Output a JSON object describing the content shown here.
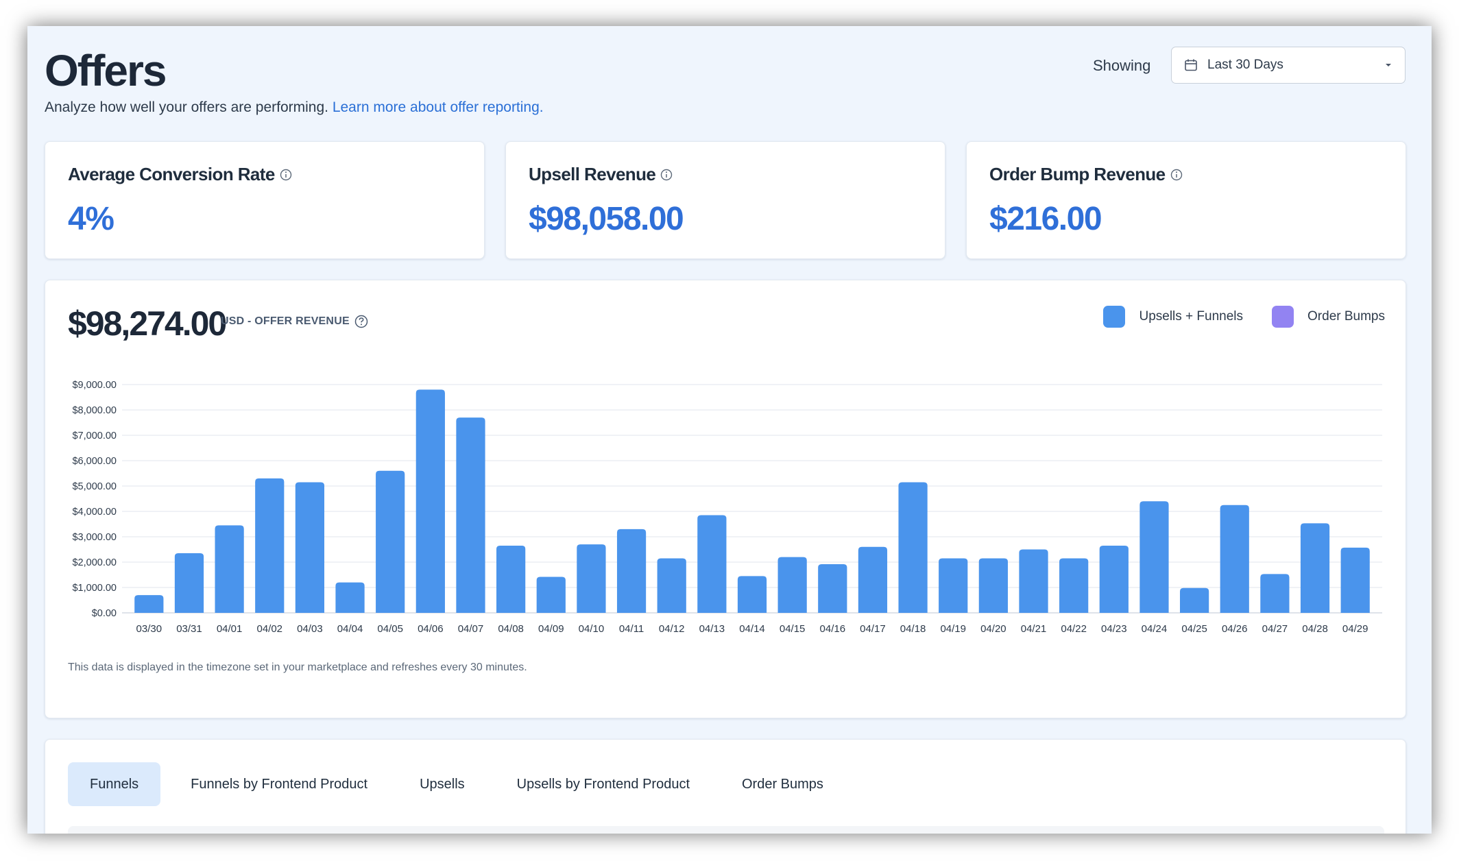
{
  "header": {
    "title": "Offers",
    "subtitle": "Analyze how well your offers are performing.",
    "learn_more_link": "Learn more about offer reporting.",
    "showing_label": "Showing",
    "date_range": "Last 30 Days"
  },
  "stats": [
    {
      "label": "Average Conversion Rate",
      "value": "4%"
    },
    {
      "label": "Upsell Revenue",
      "value": "$98,058.00"
    },
    {
      "label": "Order Bump Revenue",
      "value": "$216.00"
    }
  ],
  "revenue_summary": {
    "total": "$98,274.00",
    "caption": "USD - OFFER REVENUE"
  },
  "legend": [
    {
      "name": "Upsells + Funnels",
      "color": "#4a94ec"
    },
    {
      "name": "Order Bumps",
      "color": "#9283f2"
    }
  ],
  "footnote": "This data is displayed in the timezone set in your marketplace and refreshes every 30 minutes.",
  "tabs": [
    {
      "label": "Funnels",
      "active": true
    },
    {
      "label": "Funnels by Frontend Product",
      "active": false
    },
    {
      "label": "Upsells",
      "active": false
    },
    {
      "label": "Upsells by Frontend Product",
      "active": false
    },
    {
      "label": "Order Bumps",
      "active": false
    }
  ],
  "chart_data": {
    "type": "bar",
    "categories": [
      "03/30",
      "03/31",
      "04/01",
      "04/02",
      "04/03",
      "04/04",
      "04/05",
      "04/06",
      "04/07",
      "04/08",
      "04/09",
      "04/10",
      "04/11",
      "04/12",
      "04/13",
      "04/14",
      "04/15",
      "04/16",
      "04/17",
      "04/18",
      "04/19",
      "04/20",
      "04/21",
      "04/22",
      "04/23",
      "04/24",
      "04/25",
      "04/26",
      "04/27",
      "04/28",
      "04/29"
    ],
    "series": [
      {
        "name": "Upsells + Funnels",
        "color": "#4a94ec",
        "values": [
          700,
          2350,
          3450,
          5300,
          5150,
          1200,
          5600,
          8800,
          7700,
          2650,
          1420,
          2700,
          3300,
          2150,
          3850,
          1450,
          2200,
          1920,
          2600,
          5150,
          2150,
          2150,
          2500,
          2150,
          2650,
          4400,
          980,
          4250,
          1530,
          3530,
          2570
        ]
      },
      {
        "name": "Order Bumps",
        "color": "#9283f2",
        "values": [
          0,
          0,
          0,
          0,
          0,
          0,
          0,
          0,
          0,
          0,
          0,
          0,
          0,
          0,
          0,
          0,
          0,
          0,
          0,
          0,
          0,
          0,
          0,
          0,
          0,
          0,
          0,
          0,
          0,
          0,
          0
        ]
      }
    ],
    "y_ticks": [
      "$0.00",
      "$1,000.00",
      "$2,000.00",
      "$3,000.00",
      "$4,000.00",
      "$5,000.00",
      "$6,000.00",
      "$7,000.00",
      "$8,000.00",
      "$9,000.00"
    ],
    "ylim": [
      0,
      9000
    ],
    "grid": true,
    "legend_position": "top-right"
  }
}
